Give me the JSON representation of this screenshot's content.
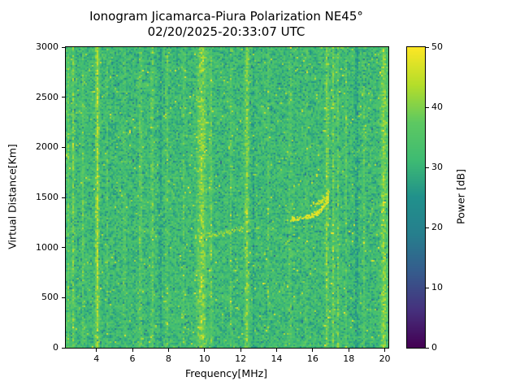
{
  "title": {
    "line1": "Ionogram Jicamarca-Piura Polarization NE45°",
    "line2": "02/20/2025-20:33:07 UTC"
  },
  "chart_data": {
    "type": "heatmap",
    "title": "Ionogram Jicamarca-Piura Polarization NE45°",
    "subtitle": "02/20/2025-20:33:07 UTC",
    "xlabel": "Frequency[MHz]",
    "ylabel": "Virtual Distance[Km]",
    "colorbar_label": "Power [dB]",
    "xlim": [
      2.3,
      20.2
    ],
    "ylim": [
      0,
      3000
    ],
    "clim": [
      0,
      50
    ],
    "x_ticks": [
      4,
      6,
      8,
      10,
      12,
      14,
      16,
      18,
      20
    ],
    "y_ticks": [
      0,
      500,
      1000,
      1500,
      2000,
      2500,
      3000
    ],
    "colorbar_ticks": [
      0,
      10,
      20,
      30,
      40,
      50
    ],
    "colormap": "viridis",
    "colormap_stops": [
      "#440154",
      "#46327e",
      "#365c8d",
      "#277f8e",
      "#21918c",
      "#3fbc73",
      "#5ec962",
      "#b5de2b",
      "#fde725"
    ],
    "background_noise_db": {
      "mean": 31.5,
      "std": 3.6
    },
    "rfi_stripes": [
      {
        "freq_mhz": 2.4,
        "halfwidth_mhz": 0.05,
        "amp_db": 6
      },
      {
        "freq_mhz": 2.66,
        "halfwidth_mhz": 0.05,
        "amp_db": 8
      },
      {
        "freq_mhz": 3.2,
        "halfwidth_mhz": 0.04,
        "amp_db": 5
      },
      {
        "freq_mhz": 4.0,
        "halfwidth_mhz": 0.07,
        "amp_db": 12
      },
      {
        "freq_mhz": 4.55,
        "halfwidth_mhz": 0.03,
        "amp_db": 4
      },
      {
        "freq_mhz": 5.5,
        "halfwidth_mhz": 0.04,
        "amp_db": 4
      },
      {
        "freq_mhz": 6.4,
        "halfwidth_mhz": 0.05,
        "amp_db": 6
      },
      {
        "freq_mhz": 7.05,
        "halfwidth_mhz": 0.05,
        "amp_db": 6
      },
      {
        "freq_mhz": 7.5,
        "halfwidth_mhz": 0.04,
        "amp_db": -6
      },
      {
        "freq_mhz": 7.85,
        "halfwidth_mhz": 0.04,
        "amp_db": 6
      },
      {
        "freq_mhz": 8.8,
        "halfwidth_mhz": 0.04,
        "amp_db": 4
      },
      {
        "freq_mhz": 9.8,
        "halfwidth_mhz": 0.18,
        "amp_db": 9
      },
      {
        "freq_mhz": 10.3,
        "halfwidth_mhz": 0.05,
        "amp_db": 6
      },
      {
        "freq_mhz": 11.4,
        "halfwidth_mhz": 0.04,
        "amp_db": 4
      },
      {
        "freq_mhz": 12.3,
        "halfwidth_mhz": 0.08,
        "amp_db": 9
      },
      {
        "freq_mhz": 12.7,
        "halfwidth_mhz": 0.03,
        "amp_db": -5
      },
      {
        "freq_mhz": 13.5,
        "halfwidth_mhz": 0.04,
        "amp_db": 4
      },
      {
        "freq_mhz": 14.7,
        "halfwidth_mhz": 0.04,
        "amp_db": 5
      },
      {
        "freq_mhz": 15.6,
        "halfwidth_mhz": 0.04,
        "amp_db": 4
      },
      {
        "freq_mhz": 16.75,
        "halfwidth_mhz": 0.06,
        "amp_db": 8
      },
      {
        "freq_mhz": 17.1,
        "halfwidth_mhz": 0.05,
        "amp_db": 7
      },
      {
        "freq_mhz": 17.35,
        "halfwidth_mhz": 0.04,
        "amp_db": 6
      },
      {
        "freq_mhz": 17.8,
        "halfwidth_mhz": 0.04,
        "amp_db": 4
      },
      {
        "freq_mhz": 18.4,
        "halfwidth_mhz": 0.05,
        "amp_db": -6
      },
      {
        "freq_mhz": 18.8,
        "halfwidth_mhz": 0.04,
        "amp_db": 4
      },
      {
        "freq_mhz": 19.9,
        "halfwidth_mhz": 0.12,
        "amp_db": 9
      }
    ],
    "echo_traces": [
      {
        "points": [
          [
            9.4,
            1115
          ],
          [
            10.0,
            1125
          ],
          [
            10.6,
            1135
          ],
          [
            11.2,
            1150
          ],
          [
            11.7,
            1175
          ],
          [
            12.1,
            1215
          ]
        ],
        "power_db": 42,
        "density": 0.4
      },
      {
        "points": [
          [
            14.8,
            1285
          ],
          [
            15.3,
            1295
          ],
          [
            15.8,
            1315
          ],
          [
            16.2,
            1345
          ],
          [
            16.5,
            1390
          ],
          [
            16.7,
            1445
          ],
          [
            16.85,
            1510
          ]
        ],
        "power_db": 47,
        "density": 0.9
      },
      {
        "points": [
          [
            15.9,
            1420
          ],
          [
            16.2,
            1440
          ],
          [
            16.5,
            1470
          ],
          [
            16.75,
            1520
          ],
          [
            16.9,
            1575
          ]
        ],
        "power_db": 45,
        "density": 0.55
      }
    ]
  }
}
